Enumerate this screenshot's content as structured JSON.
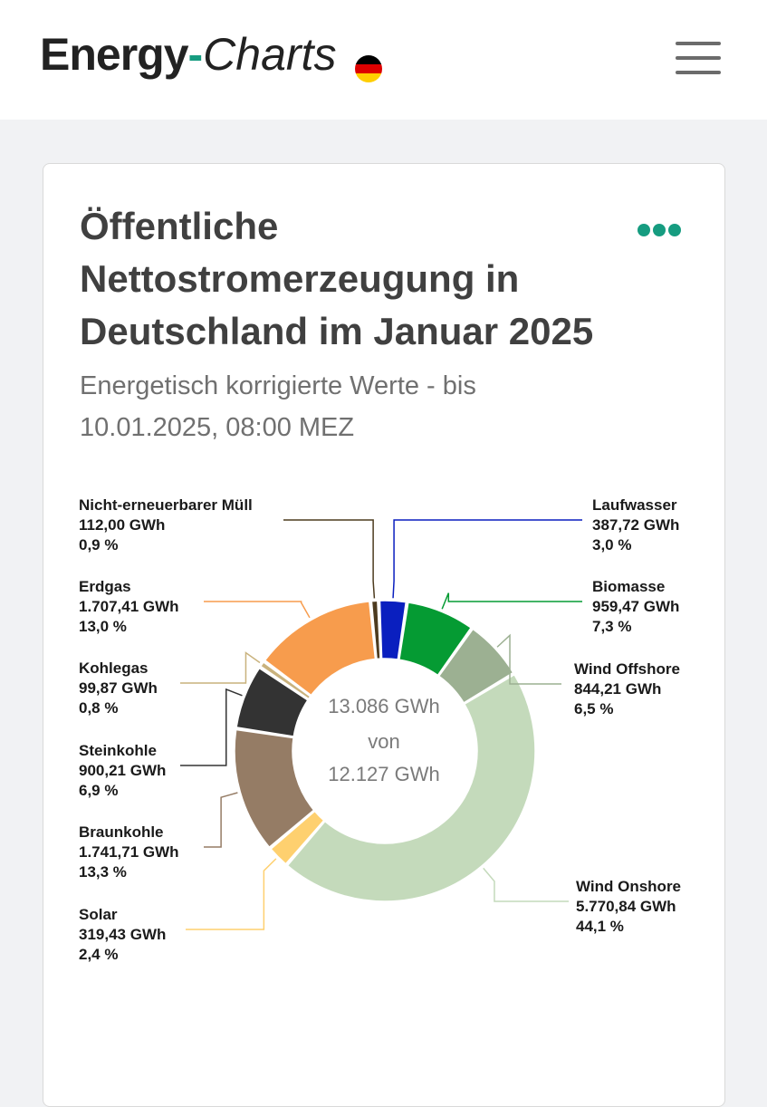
{
  "header": {
    "logo_part1": "Energy",
    "logo_dash": "-",
    "logo_part2": "Charts",
    "flag_colors": [
      "#000000",
      "#dd0000",
      "#ffce00"
    ],
    "menu_icon": "hamburger-menu-icon"
  },
  "card": {
    "title": "Öffentliche Nettostromerzeugung in Deutschland im Januar 2025",
    "subtitle": "Energetisch korrigierte Werte - bis 10.01.2025, 08:00 MEZ",
    "options_icon": "more-options-icon",
    "accent_color": "#169c80"
  },
  "chart_data": {
    "type": "pie",
    "style": "donut",
    "unit": "GWh",
    "center_text": [
      "13.086 GWh",
      "von",
      "12.127 GWh"
    ],
    "series": [
      {
        "name": "Nicht-erneuerbarer Müll",
        "value": 112.0,
        "value_label": "112,00 GWh",
        "percent_label": "0,9 %",
        "color": "#4d3b1f"
      },
      {
        "name": "Laufwasser",
        "value": 387.72,
        "value_label": "387,72 GWh",
        "percent_label": "3,0 %",
        "color": "#0a1fbf"
      },
      {
        "name": "Biomasse",
        "value": 959.47,
        "value_label": "959,47 GWh",
        "percent_label": "7,3 %",
        "color": "#059b33"
      },
      {
        "name": "Wind Offshore",
        "value": 844.21,
        "value_label": "844,21 GWh",
        "percent_label": "6,5 %",
        "color": "#9cb092"
      },
      {
        "name": "Wind Onshore",
        "value": 5770.84,
        "value_label": "5.770,84 GWh",
        "percent_label": "44,1 %",
        "color": "#c4dabb"
      },
      {
        "name": "Solar",
        "value": 319.43,
        "value_label": "319,43 GWh",
        "percent_label": "2,4 %",
        "color": "#fed06f"
      },
      {
        "name": "Braunkohle",
        "value": 1741.71,
        "value_label": "1.741,71 GWh",
        "percent_label": "13,3 %",
        "color": "#957c65"
      },
      {
        "name": "Steinkohle",
        "value": 900.21,
        "value_label": "900,21 GWh",
        "percent_label": "6,9 %",
        "color": "#333333"
      },
      {
        "name": "Kohlegas",
        "value": 99.87,
        "value_label": "99,87 GWh",
        "percent_label": "0,8 %",
        "color": "#c9b27d"
      },
      {
        "name": "Erdgas",
        "value": 1707.41,
        "value_label": "1.707,41 GWh",
        "percent_label": "13,0 %",
        "color": "#f79c4d"
      }
    ]
  }
}
